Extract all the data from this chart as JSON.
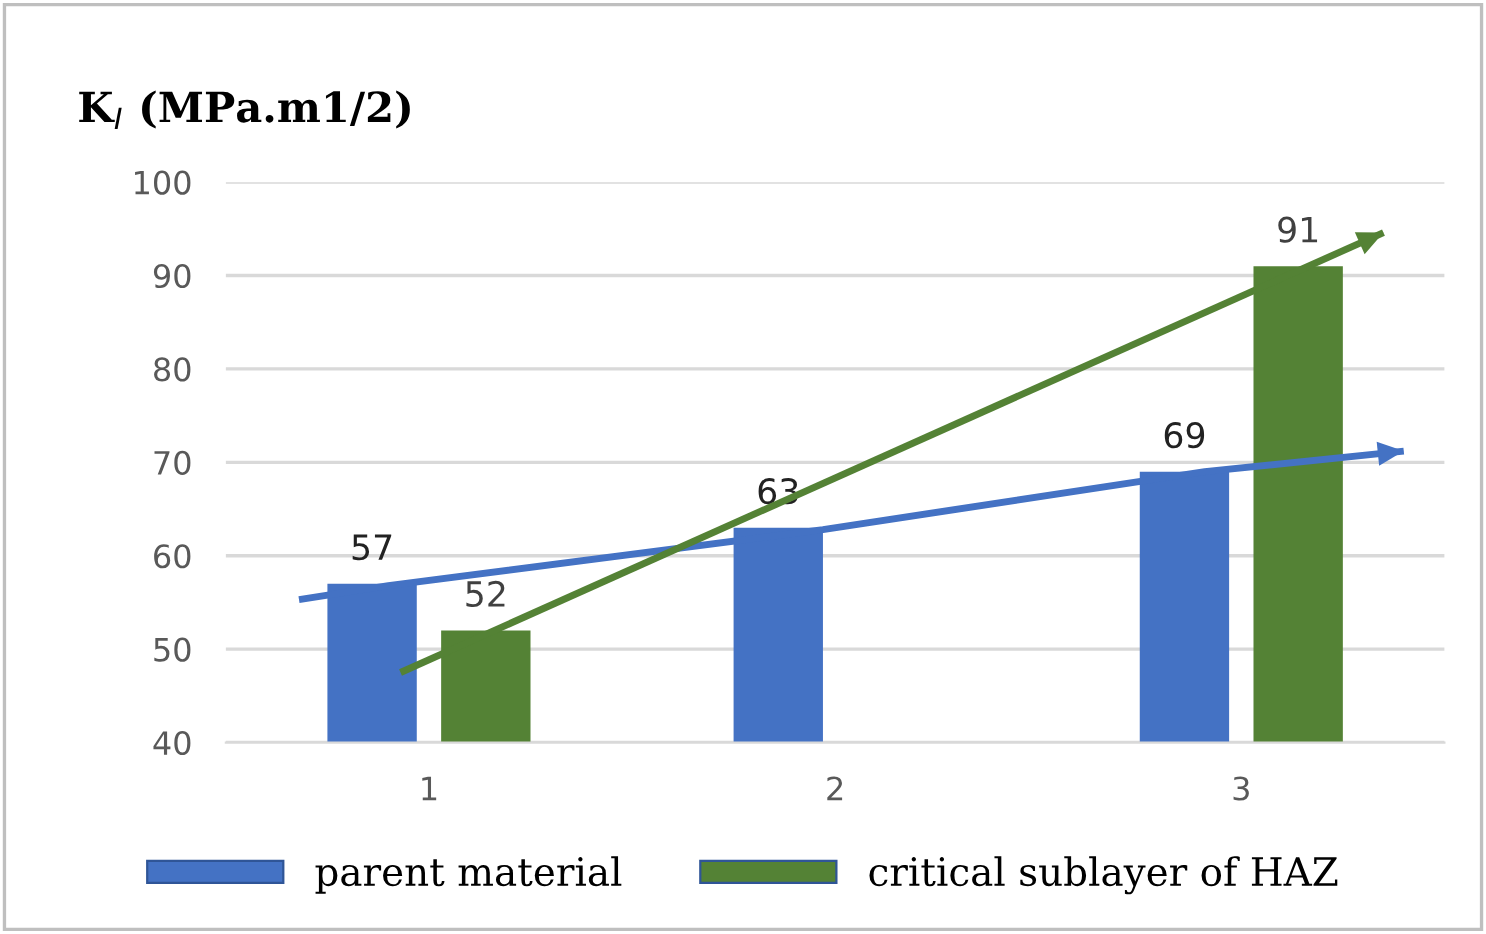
{
  "chart_data": {
    "type": "bar",
    "title": "K$_{I}$ (MPa.m1/2)",
    "x": [
      1,
      2,
      3
    ],
    "xlim": [
      0.5,
      3.5
    ],
    "xticks": [
      1,
      2,
      3
    ],
    "ylim": [
      40,
      100
    ],
    "yticks": [
      40,
      50,
      60,
      70,
      80,
      90,
      100
    ],
    "grid": "y",
    "legend": "bottom",
    "marker": "none",
    "line_style": "solid",
    "series": [
      {
        "name": "parent material",
        "color": "#4472c4",
        "values": [
          57,
          63,
          69
        ],
        "value_labels": [
          "57",
          "63",
          "69"
        ]
      },
      {
        "name": "critical sublayer of HAZ",
        "color": "#548235",
        "values": [
          52,
          null,
          91
        ],
        "value_labels": [
          "52",
          null,
          "91"
        ]
      },
      {
        "type": "line",
        "color": "#4472c4",
        "x": [
          0.68,
          0.9,
          1.97,
          2.91,
          3.4
        ],
        "values": [
          55.3,
          56.8,
          62.8,
          69.0,
          71.2
        ]
      },
      {
        "type": "line",
        "color": "#548235",
        "x": [
          0.93,
          3.35
        ],
        "values": [
          47.5,
          94.6
        ]
      }
    ]
  }
}
